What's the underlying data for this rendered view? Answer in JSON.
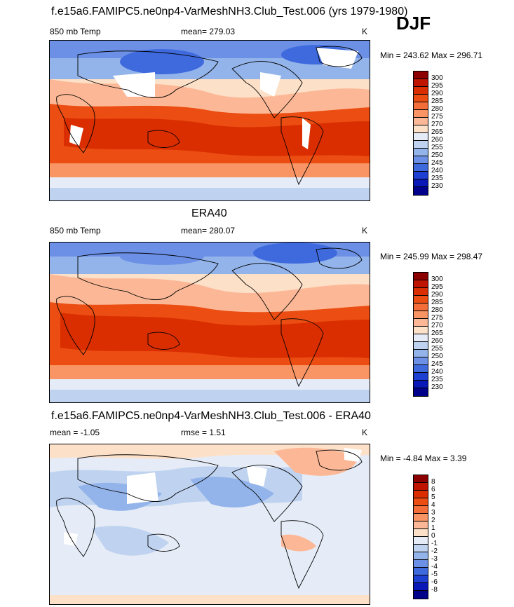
{
  "season": "DJF",
  "panels": [
    {
      "title": "f.e15a6.FAMIPC5.ne0np4-VarMeshNH3.Club_Test.006 (yrs 1979-1980)",
      "left": "850 mb Temp",
      "center": "mean= 279.03",
      "units": "K",
      "minmax": "Min = 243.62 Max = 296.71",
      "colorbar": [
        "300",
        "295",
        "290",
        "285",
        "280",
        "275",
        "270",
        "265",
        "260",
        "255",
        "250",
        "245",
        "240",
        "235",
        "230"
      ]
    },
    {
      "title": "ERA40",
      "left": "850 mb Temp",
      "center": "mean= 280.07",
      "units": "K",
      "minmax": "Min = 245.99 Max = 298.47",
      "colorbar": [
        "300",
        "295",
        "290",
        "285",
        "280",
        "275",
        "270",
        "265",
        "260",
        "255",
        "250",
        "245",
        "240",
        "235",
        "230"
      ]
    },
    {
      "title": "f.e15a6.FAMIPC5.ne0np4-VarMeshNH3.Club_Test.006 - ERA40",
      "left": "mean =  -1.05",
      "center": "rmse =   1.51",
      "units": "K",
      "minmax": "Min =  -4.84 Max =   3.39",
      "colorbar": [
        "8",
        "6",
        "5",
        "4",
        "3",
        "2",
        "1",
        "0",
        "-1",
        "-2",
        "-3",
        "-4",
        "-5",
        "-6",
        "-8"
      ]
    }
  ],
  "colors": {
    "temp": [
      "#8c0000",
      "#bf1500",
      "#db2e00",
      "#eb4d12",
      "#f46e3a",
      "#f99464",
      "#fcb896",
      "#fde0c8",
      "#e6ecf7",
      "#bfd3f0",
      "#93b4ea",
      "#6b90e6",
      "#3f6ade",
      "#1d3fd2",
      "#0a18b8",
      "#00008a"
    ],
    "diff": [
      "#8c0000",
      "#bf1500",
      "#db2e00",
      "#eb4d12",
      "#f46e3a",
      "#f99464",
      "#fcb896",
      "#fde0c8",
      "#e6ecf7",
      "#bfd3f0",
      "#93b4ea",
      "#6b90e6",
      "#3f6ade",
      "#1d3fd2",
      "#0a18b8",
      "#00008a"
    ]
  }
}
